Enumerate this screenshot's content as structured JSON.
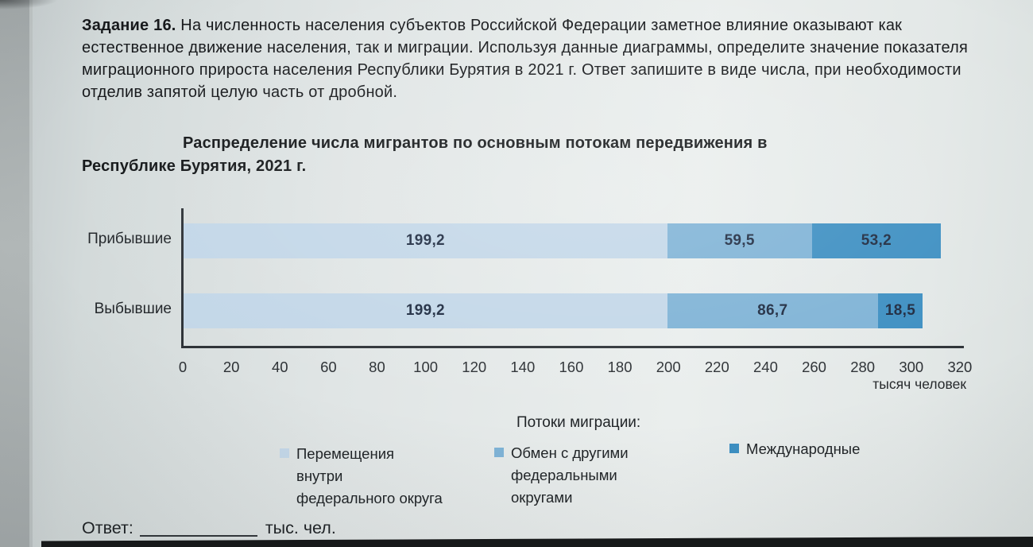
{
  "task": {
    "label": "Задание 16.",
    "text": "На численность населения субъектов Российской Федерации заметное влияние оказывают как естественное движение населения, так и миграции. Используя данные диаграммы, определите значение показателя миграционного прироста населения Республики Бурятия в 2021 г. Ответ запишите в виде числа, при необходимости отделив запятой целую часть от дробной."
  },
  "chart_data": {
    "type": "bar",
    "orientation": "horizontal",
    "stacked": true,
    "title": "Распределение числа мигрантов по основным потокам передвижения в Республике Бурятия, 2021 г.",
    "title_lines": [
      "Распределение числа мигрантов по основным потокам передвижения в",
      "Республике Бурятия, 2021 г."
    ],
    "categories": [
      "Прибывшие",
      "Выбывшие"
    ],
    "series": [
      {
        "name": "Перемещения внутри федерального округа",
        "color": "#c3d7e8",
        "values": [
          199.2,
          199.2
        ]
      },
      {
        "name": "Обмен с другими федеральными округами",
        "color": "#7fb3d6",
        "values": [
          59.5,
          86.7
        ]
      },
      {
        "name": "Международные",
        "color": "#3d8fc2",
        "values": [
          53.2,
          18.5
        ]
      }
    ],
    "value_labels": [
      [
        "199,2",
        "59,5",
        "53,2"
      ],
      [
        "199,2",
        "86,7",
        "18,5"
      ]
    ],
    "x_ticks": [
      0,
      20,
      40,
      60,
      80,
      100,
      120,
      140,
      160,
      180,
      200,
      220,
      240,
      260,
      280,
      300,
      320
    ],
    "xlim": [
      0,
      320
    ],
    "xlabel": "тысяч человек",
    "grid": false,
    "legend_title": "Потоки миграции:",
    "legend_position": "bottom"
  },
  "answer": {
    "label": "Ответ:",
    "value": "",
    "unit": "тыс. чел."
  }
}
